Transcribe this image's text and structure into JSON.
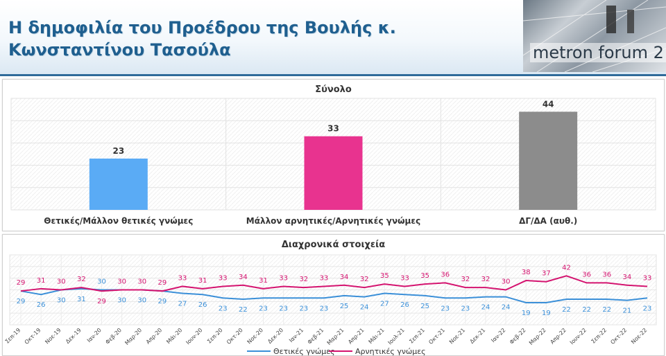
{
  "header": {
    "title": "Η δημοφιλία του Προέδρου της Βουλής κ. Κωνσταντίνου Τασούλα",
    "brand": "metron forum 2"
  },
  "chart_data": [
    {
      "type": "bar",
      "title": "Σύνολο",
      "categories": [
        "Θετικές/Μάλλον θετικές γνώμες",
        "Μάλλον αρνητικές/Αρνητικές γνώμες",
        "ΔΓ/ΔΑ (αυθ.)"
      ],
      "values": [
        23,
        33,
        44
      ],
      "colors": [
        "#5aabf5",
        "#e8338f",
        "#8c8c8c"
      ],
      "ylim": [
        0,
        50
      ],
      "grid": true
    },
    {
      "type": "line",
      "title": "Διαχρονικά στοιχεία",
      "x": [
        "Σεπ-19",
        "Οκτ-19",
        "Νοε-19",
        "Δεκ-19",
        "Ιαν-20",
        "Φεβ-20",
        "Μαρ-20",
        "Απρ-20",
        "Μάι-20",
        "Ιουν-20",
        "Σεπ-20",
        "Οκτ-20",
        "Νοε-20",
        "Δεκ-20",
        "Ιαν-21",
        "Φεβ-21",
        "Μαρ-21",
        "Απρ-21",
        "Μάι-21",
        "Ιουλ-21",
        "Σεπ-21",
        "Οκτ-21",
        "Νοε-21",
        "Δεκ-21",
        "Ιαν-22",
        "Φεβ-22",
        "Μαρ-22",
        "Απρ-22",
        "Ιουν-22",
        "Σεπ-22",
        "Οκτ-22",
        "Νοε-22"
      ],
      "series": [
        {
          "name": "Θετικές γνώμες",
          "color": "#3a8fd8",
          "values": [
            29,
            26,
            30,
            31,
            30,
            30,
            30,
            29,
            27,
            26,
            23,
            22,
            23,
            23,
            23,
            23,
            25,
            24,
            27,
            26,
            25,
            23,
            23,
            24,
            24,
            19,
            19,
            22,
            22,
            22,
            21,
            23
          ]
        },
        {
          "name": "Αρνητικές γνώμες",
          "color": "#d4136f",
          "values": [
            29,
            31,
            30,
            32,
            29,
            30,
            30,
            29,
            33,
            31,
            33,
            34,
            31,
            33,
            32,
            33,
            34,
            32,
            35,
            33,
            35,
            36,
            32,
            32,
            30,
            38,
            37,
            42,
            36,
            36,
            34,
            33
          ]
        }
      ],
      "ylim": [
        0,
        60
      ],
      "grid": true,
      "legend": "bottom"
    }
  ]
}
